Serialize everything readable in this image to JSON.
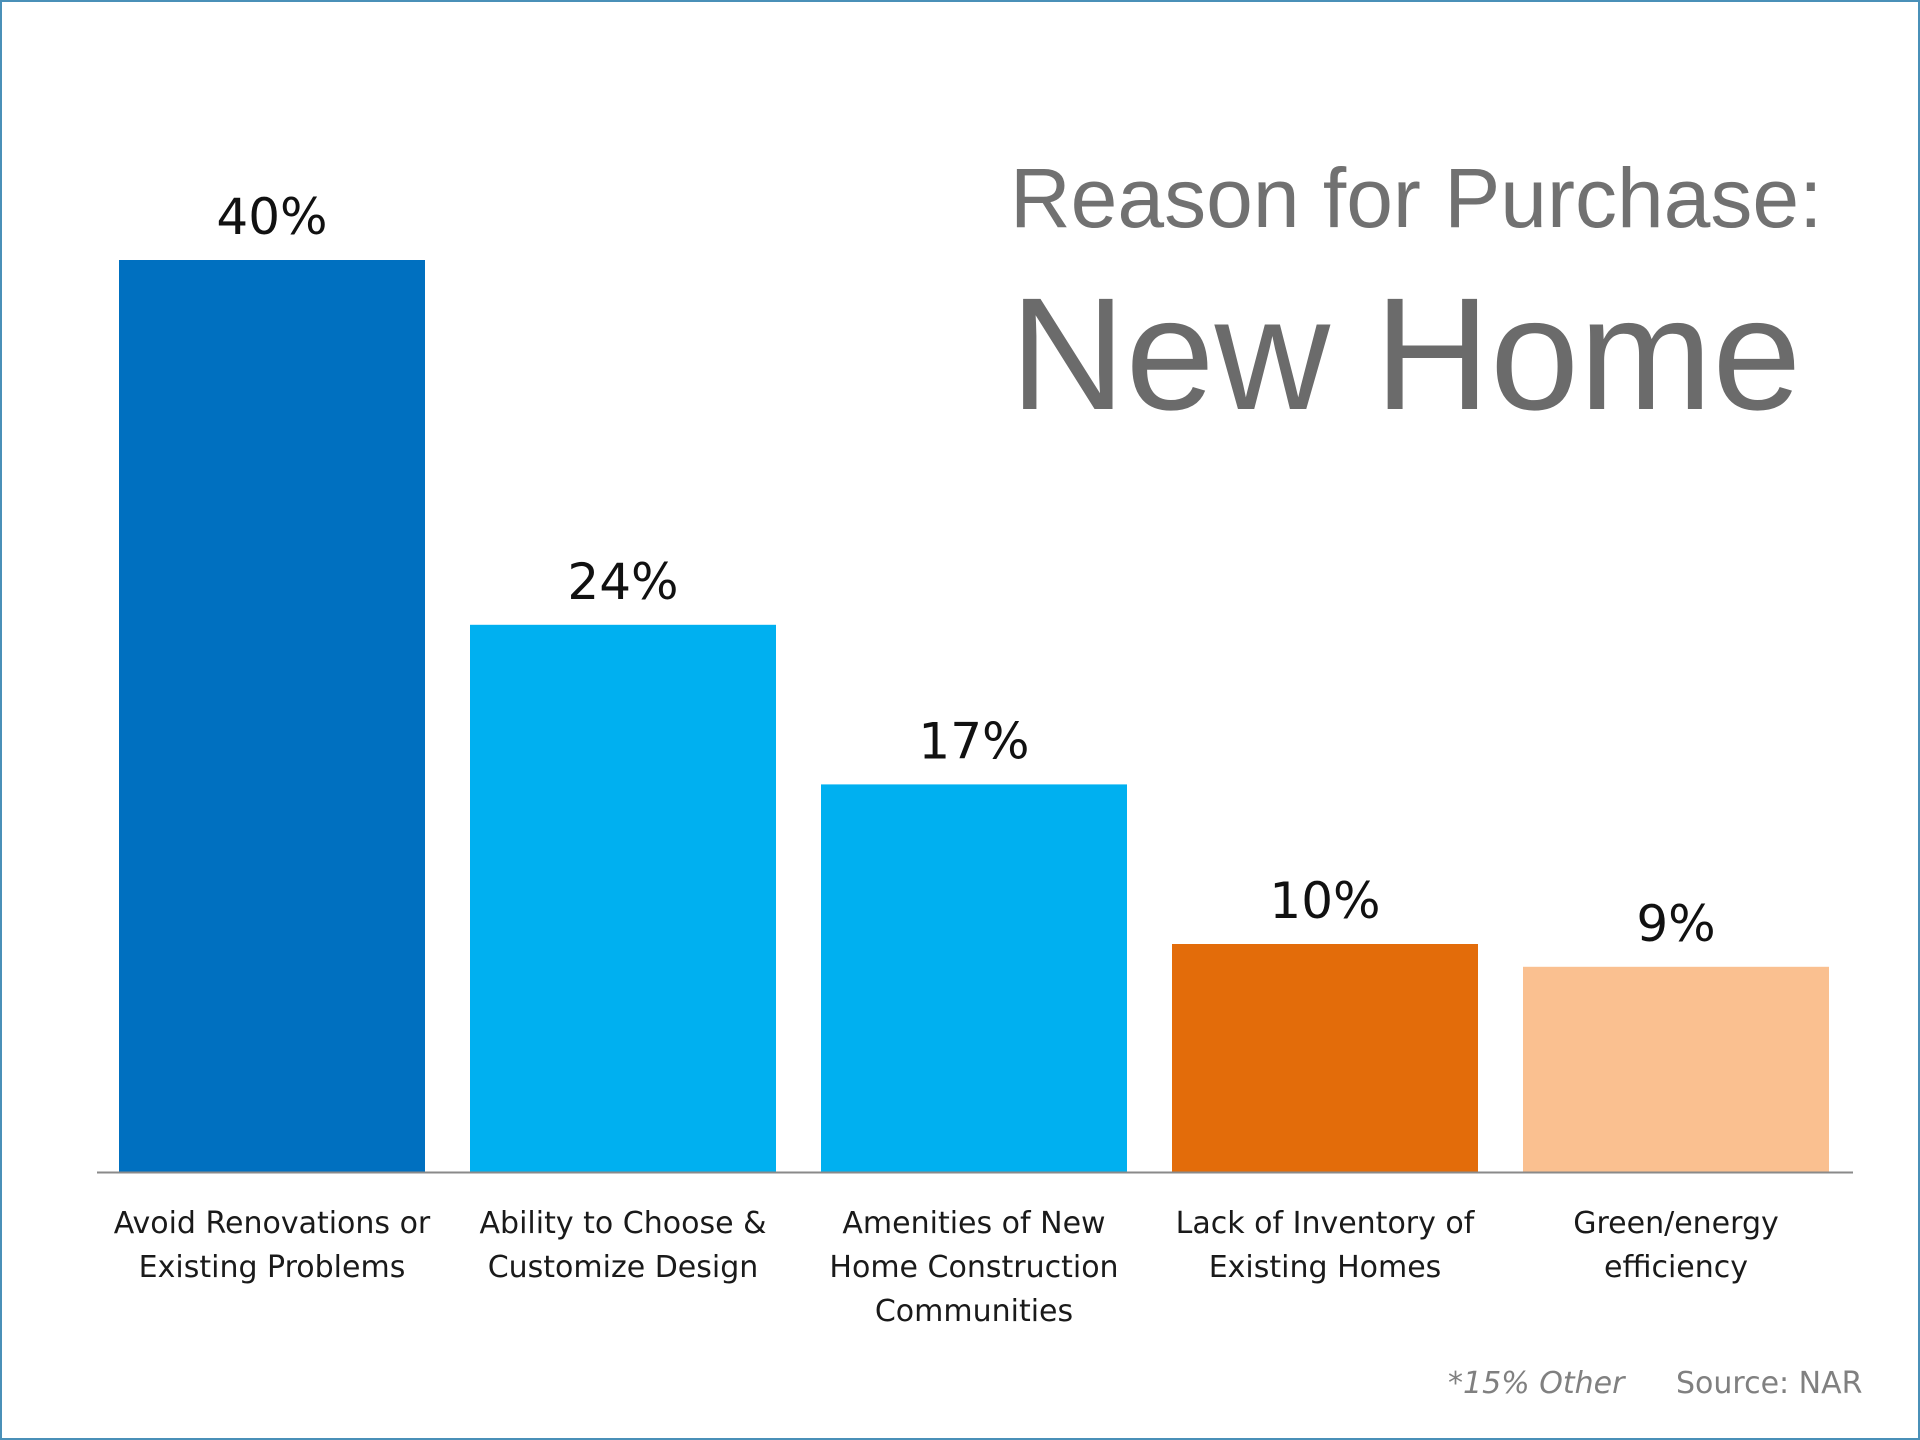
{
  "title": {
    "line1": "Reason for Purchase:",
    "line2": "New Home"
  },
  "footnotes": {
    "other": "*15% Other",
    "source": "Source: NAR"
  },
  "chart_data": {
    "type": "bar",
    "categories": [
      [
        "Avoid Renovations or",
        "Existing Problems"
      ],
      [
        "Ability to Choose &",
        "Customize Design"
      ],
      [
        "Amenities of New",
        "Home Construction",
        "Communities"
      ],
      [
        "Lack of Inventory of",
        "Existing Homes"
      ],
      [
        "Green/energy",
        "efficiency"
      ]
    ],
    "values": [
      40,
      24,
      17,
      10,
      9
    ],
    "value_labels": [
      "40%",
      "24%",
      "17%",
      "10%",
      "9%"
    ],
    "colors": [
      "#0070C0",
      "#00B0F0",
      "#00B0F0",
      "#E36C0A",
      "#FAC090"
    ],
    "ylim": [
      0,
      40
    ],
    "grid": false,
    "legend": "none"
  }
}
